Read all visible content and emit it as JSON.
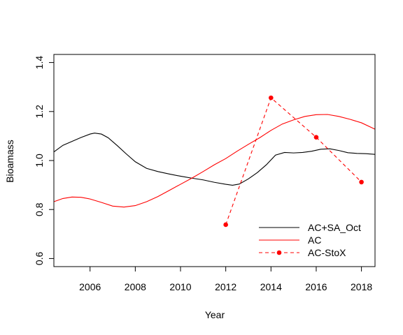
{
  "chart_data": {
    "type": "line",
    "title": "",
    "xlabel": "Year",
    "ylabel": "Bioamass",
    "xlim": [
      2004.4,
      2018.6
    ],
    "ylim": [
      0.567,
      1.433
    ],
    "x_ticks": [
      2006,
      2008,
      2010,
      2012,
      2014,
      2016,
      2018
    ],
    "y_ticks": [
      0.6,
      0.8,
      1.0,
      1.2,
      1.4
    ],
    "x_tick_labels": [
      "2006",
      "2008",
      "2010",
      "2012",
      "2014",
      "2016",
      "2018"
    ],
    "y_tick_labels": [
      "0.6",
      "0.8",
      "1.0",
      "1.2",
      "1.4"
    ],
    "grid": false,
    "legend_position": "bottom-right",
    "series": [
      {
        "name": "AC+SA_Oct",
        "color": "#000000",
        "style": "solid",
        "markers": false,
        "x": [
          2004.4,
          2004.8,
          2005.2,
          2005.6,
          2006.0,
          2006.2,
          2006.5,
          2006.8,
          2007.2,
          2007.6,
          2008.0,
          2008.5,
          2009.0,
          2009.5,
          2010.0,
          2010.5,
          2011.0,
          2011.5,
          2012.0,
          2012.3,
          2012.6,
          2013.0,
          2013.4,
          2013.8,
          2014.2,
          2014.6,
          2015.0,
          2015.4,
          2015.8,
          2016.2,
          2016.6,
          2017.0,
          2017.4,
          2017.8,
          2018.2,
          2018.6
        ],
        "y": [
          1.035,
          1.062,
          1.078,
          1.094,
          1.108,
          1.112,
          1.108,
          1.093,
          1.061,
          1.027,
          0.995,
          0.968,
          0.955,
          0.945,
          0.936,
          0.928,
          0.921,
          0.911,
          0.903,
          0.899,
          0.904,
          0.925,
          0.951,
          0.983,
          1.022,
          1.033,
          1.031,
          1.033,
          1.038,
          1.046,
          1.048,
          1.041,
          1.032,
          1.029,
          1.028,
          1.025
        ]
      },
      {
        "name": "AC",
        "color": "#ff0000",
        "style": "solid",
        "markers": false,
        "x": [
          2004.4,
          2004.8,
          2005.2,
          2005.6,
          2006.0,
          2006.5,
          2007.0,
          2007.5,
          2008.0,
          2008.5,
          2009.0,
          2009.5,
          2010.0,
          2010.5,
          2011.0,
          2011.5,
          2012.0,
          2012.5,
          2013.0,
          2013.5,
          2014.0,
          2014.5,
          2015.0,
          2015.5,
          2016.0,
          2016.5,
          2017.0,
          2017.5,
          2018.0,
          2018.6
        ],
        "y": [
          0.832,
          0.845,
          0.851,
          0.85,
          0.843,
          0.829,
          0.814,
          0.81,
          0.816,
          0.832,
          0.853,
          0.878,
          0.903,
          0.928,
          0.955,
          0.983,
          1.008,
          1.038,
          1.066,
          1.093,
          1.123,
          1.149,
          1.166,
          1.18,
          1.187,
          1.188,
          1.18,
          1.168,
          1.154,
          1.128
        ]
      },
      {
        "name": "AC-StoX",
        "color": "#ff0000",
        "style": "dashed",
        "markers": true,
        "x": [
          2012,
          2014,
          2016,
          2018
        ],
        "y": [
          0.738,
          1.256,
          1.095,
          0.912
        ]
      }
    ]
  }
}
